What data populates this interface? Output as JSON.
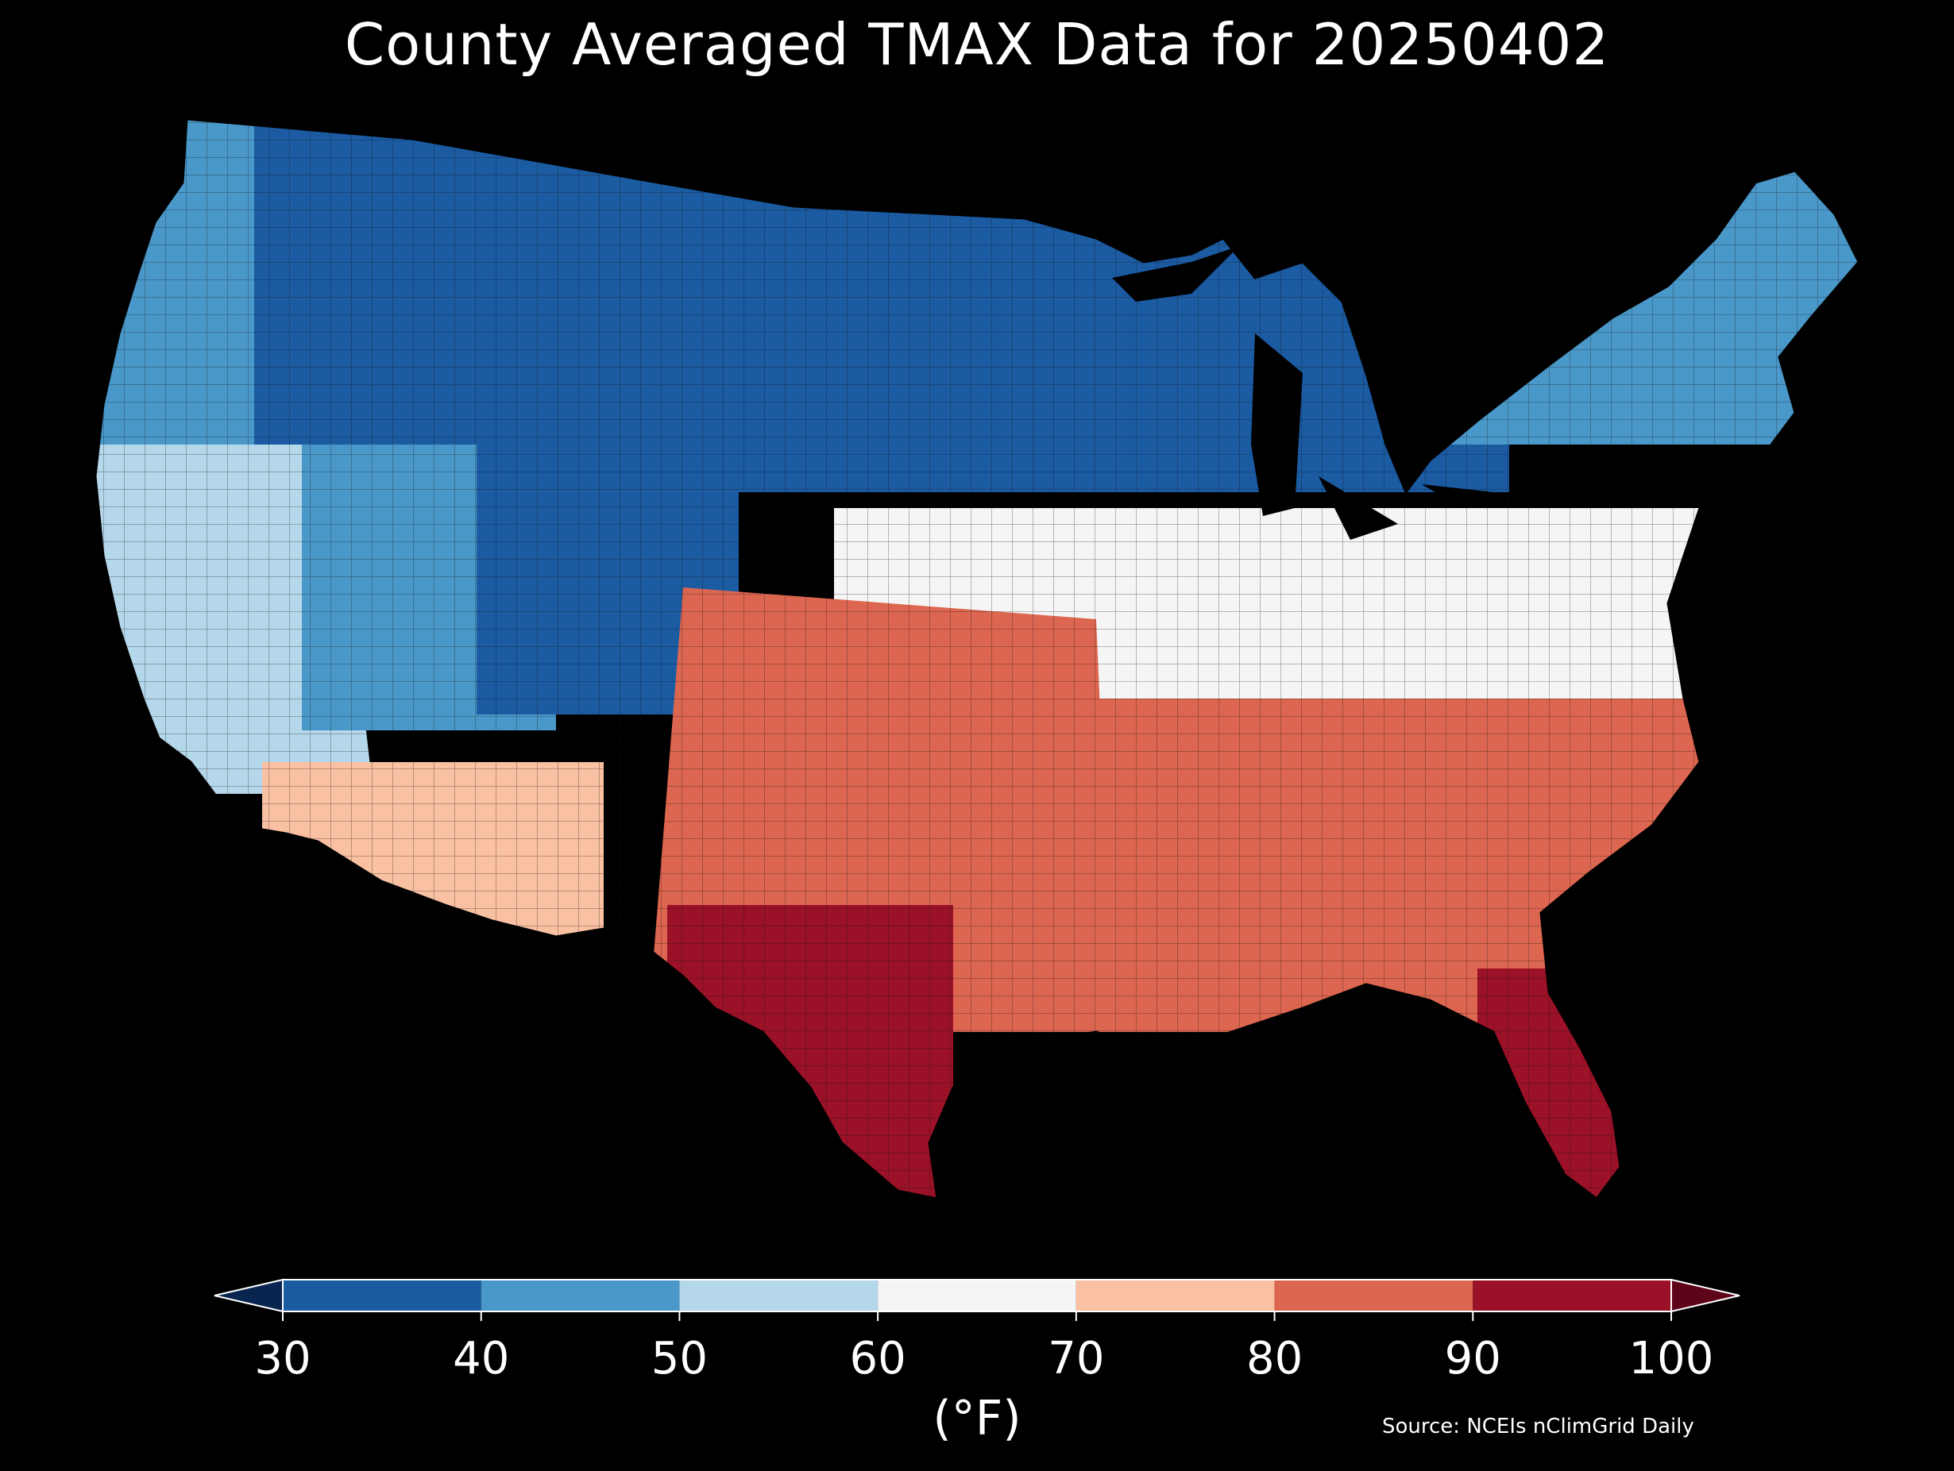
{
  "title": "County Averaged TMAX Data for 20250402",
  "colorbar": {
    "units_label": "(°F)",
    "ticks": [
      "30",
      "40",
      "50",
      "60",
      "70",
      "80",
      "90",
      "100"
    ],
    "bins": [
      {
        "range": "<30",
        "color": "#08254f"
      },
      {
        "range": "30-40",
        "color": "#1b5ba2"
      },
      {
        "range": "40-50",
        "color": "#4a98c9"
      },
      {
        "range": "50-60",
        "color": "#b5d7ea"
      },
      {
        "range": "60-70",
        "color": "#f5f5f5"
      },
      {
        "range": "70-80",
        "color": "#f9c0a2"
      },
      {
        "range": "80-90",
        "color": "#dd6650"
      },
      {
        "range": "90-100",
        "color": "#9b1127"
      },
      {
        "range": ">100",
        "color": "#5e0419"
      }
    ]
  },
  "source_note": "Source: NCEIs nClimGrid Daily",
  "regions": [
    {
      "name": "Pacific Northwest",
      "band": "40-50"
    },
    {
      "name": "Northern Rockies",
      "band": "30-40"
    },
    {
      "name": "Northern Plains",
      "band": "<30"
    },
    {
      "name": "Great Lakes",
      "band": "30-40"
    },
    {
      "name": "Northeast",
      "band": "40-50"
    },
    {
      "name": "California",
      "band": "50-60"
    },
    {
      "name": "Great Basin",
      "band": "40-50"
    },
    {
      "name": "Southwest",
      "band": "70-80"
    },
    {
      "name": "Central Rockies",
      "band": "30-40"
    },
    {
      "name": "Mid-Atlantic",
      "band": "60-70"
    },
    {
      "name": "Ohio Valley",
      "band": "60-70"
    },
    {
      "name": "Southern Plains",
      "band": "80-90"
    },
    {
      "name": "South Texas",
      "band": "90-100"
    },
    {
      "name": "Southeast",
      "band": "80-90"
    },
    {
      "name": "Florida",
      "band": "90-100"
    }
  ]
}
